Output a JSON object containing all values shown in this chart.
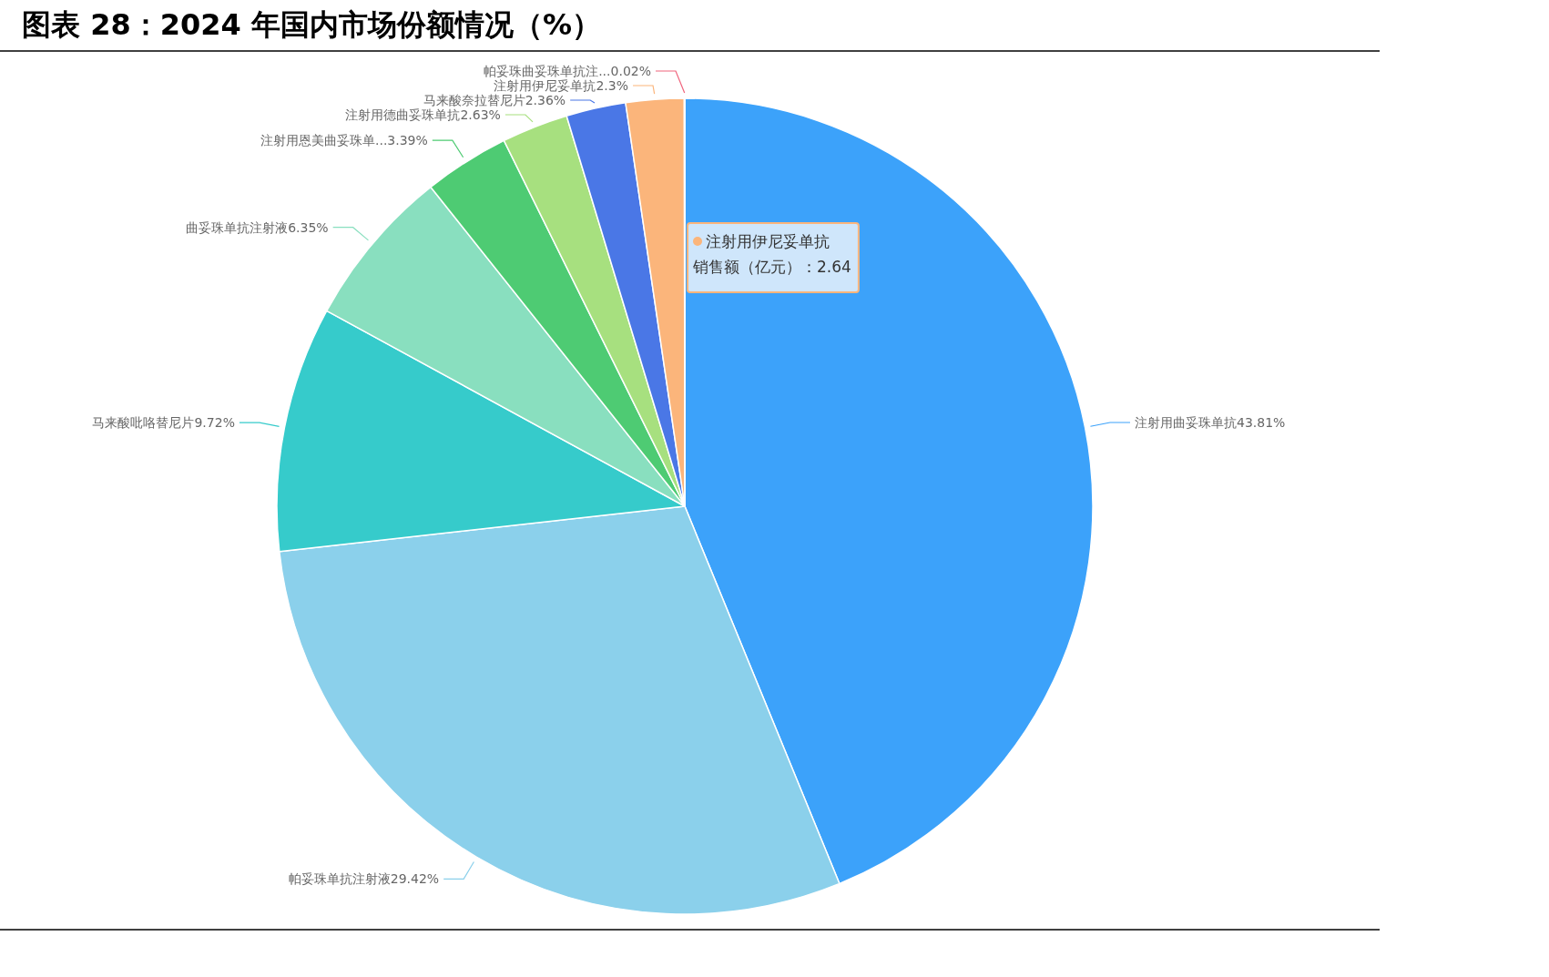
{
  "chart_data": {
    "type": "pie",
    "title": "图表 28：2024 年国内市场份额情况（%）",
    "categories": [
      "注射用曲妥珠单抗",
      "帕妥珠单抗注射液",
      "马来酸吡咯替尼片",
      "曲妥珠单抗注射液",
      "注射用恩美曲妥珠单...",
      "注射用德曲妥珠单抗",
      "马来酸奈拉替尼片",
      "注射用伊尼妥单抗",
      "帕妥珠曲妥珠单抗注..."
    ],
    "values": [
      43.81,
      29.42,
      9.72,
      6.35,
      3.39,
      2.63,
      2.36,
      2.3,
      0.02
    ],
    "value_labels": [
      "43.81%",
      "29.42%",
      "9.72%",
      "6.35%",
      "3.39%",
      "2.63%",
      "2.36%",
      "2.3%",
      "0.02%"
    ],
    "colors": [
      "#3ca2fa",
      "#8bd0eb",
      "#36cbcb",
      "#89dfbf",
      "#4ecb73",
      "#a7e07f",
      "#4a77e6",
      "#fbb57b",
      "#f0657d"
    ],
    "annotations": [
      "注射用伊尼妥单抗",
      "销售额（亿元）：2.64"
    ]
  }
}
